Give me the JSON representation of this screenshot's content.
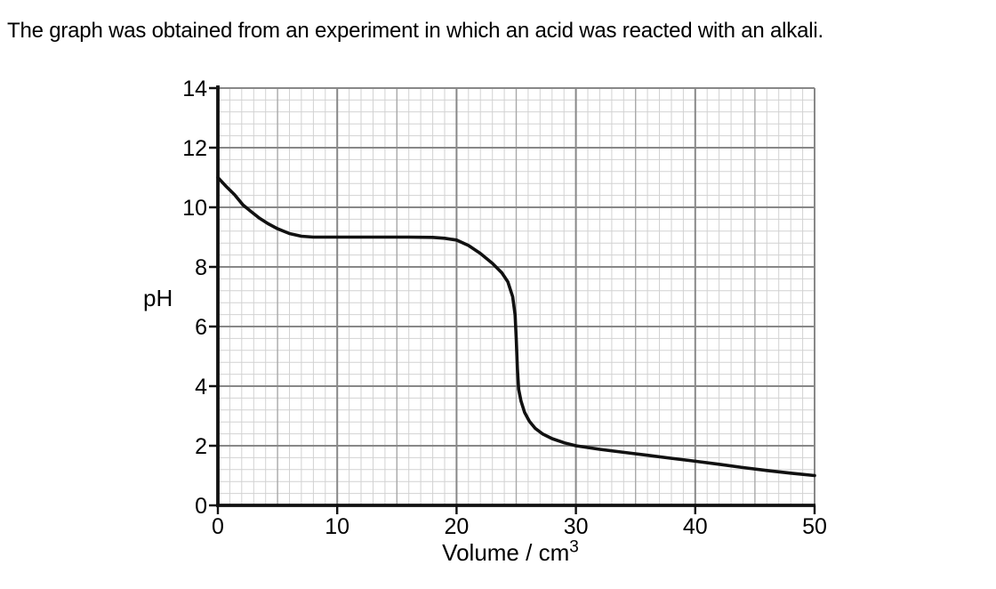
{
  "page": {
    "background": "#ffffff",
    "title": "The graph was obtained from an experiment in which an acid was reacted with an alkali."
  },
  "chart_data": {
    "type": "line",
    "title": "",
    "xlabel": {
      "text": "Volume / cm",
      "sup": "3"
    },
    "ylabel": "pH",
    "xlim": [
      0,
      50
    ],
    "ylim": [
      0,
      14
    ],
    "x_ticks": [
      0,
      10,
      20,
      30,
      40,
      50
    ],
    "y_ticks": [
      0,
      2,
      4,
      6,
      8,
      10,
      12,
      14
    ],
    "grid": {
      "on": true,
      "minor_step_x": 1,
      "medium_step_x": 5,
      "major_step_x": 10,
      "minor_step_y": 0.4,
      "major_step_y": 2,
      "minor_color": "#d2d2d2",
      "medium_color": "#a9a9a9",
      "major_color": "#888888"
    },
    "legend": "none",
    "axis_color": "#111111",
    "curve_color": "#111111",
    "series": [
      {
        "name": "pH curve",
        "points": [
          [
            0,
            11.0
          ],
          [
            0.7,
            10.7
          ],
          [
            1.4,
            10.42
          ],
          [
            2.1,
            10.08
          ],
          [
            2.8,
            9.85
          ],
          [
            3.5,
            9.63
          ],
          [
            4.2,
            9.45
          ],
          [
            5,
            9.28
          ],
          [
            6,
            9.12
          ],
          [
            7,
            9.03
          ],
          [
            8,
            9.0
          ],
          [
            10,
            9.0
          ],
          [
            12,
            9.0
          ],
          [
            14,
            9.0
          ],
          [
            16,
            9.0
          ],
          [
            18,
            8.99
          ],
          [
            19,
            8.96
          ],
          [
            20,
            8.9
          ],
          [
            21,
            8.72
          ],
          [
            22,
            8.45
          ],
          [
            23,
            8.12
          ],
          [
            23.8,
            7.8
          ],
          [
            24.3,
            7.5
          ],
          [
            24.7,
            7.0
          ],
          [
            24.9,
            6.4
          ],
          [
            25.0,
            5.6
          ],
          [
            25.1,
            4.6
          ],
          [
            25.2,
            3.9
          ],
          [
            25.4,
            3.5
          ],
          [
            25.7,
            3.12
          ],
          [
            26.1,
            2.82
          ],
          [
            26.6,
            2.58
          ],
          [
            27.2,
            2.4
          ],
          [
            28,
            2.24
          ],
          [
            29,
            2.1
          ],
          [
            30,
            2.0
          ],
          [
            32,
            1.88
          ],
          [
            34,
            1.78
          ],
          [
            36,
            1.68
          ],
          [
            38,
            1.58
          ],
          [
            40,
            1.48
          ],
          [
            42,
            1.38
          ],
          [
            44,
            1.27
          ],
          [
            46,
            1.17
          ],
          [
            48,
            1.08
          ],
          [
            50,
            1.0
          ]
        ]
      }
    ]
  }
}
